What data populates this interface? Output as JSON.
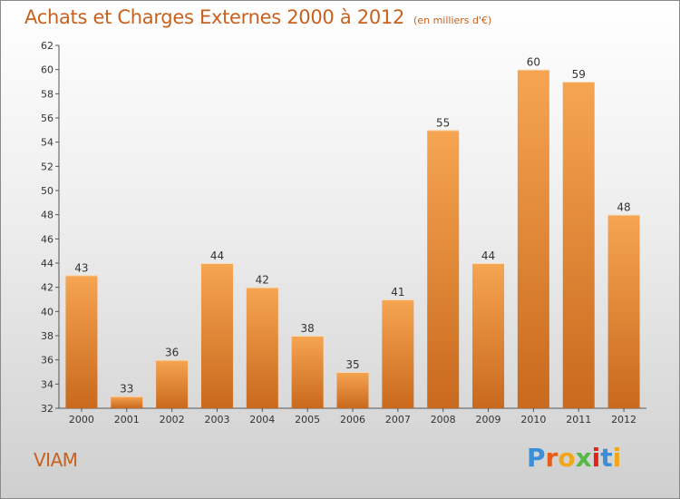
{
  "header": {
    "title": "Achats et Charges Externes 2000 à 2012",
    "subtitle": "(en milliers d'€)"
  },
  "footer": {
    "commune": "VIAM",
    "logo_letters": [
      "P",
      "r",
      "o",
      "x",
      "i",
      "t",
      "i"
    ],
    "logo_colors": [
      "#3b8fd9",
      "#e85d1a",
      "#f2a71b",
      "#57b848",
      "#e2231a",
      "#3b8fd9",
      "#f2a71b"
    ]
  },
  "chart_data": {
    "type": "bar",
    "title": "Achats et Charges Externes 2000 à 2012",
    "subtitle": "(en milliers d'€)",
    "categories": [
      "2000",
      "2001",
      "2002",
      "2003",
      "2004",
      "2005",
      "2006",
      "2007",
      "2008",
      "2009",
      "2010",
      "2011",
      "2012"
    ],
    "values": [
      43,
      33,
      36,
      44,
      42,
      38,
      35,
      41,
      55,
      44,
      60,
      59,
      48
    ],
    "ylim": [
      32,
      62
    ],
    "yticks": [
      32,
      34,
      36,
      38,
      40,
      42,
      44,
      46,
      48,
      50,
      52,
      54,
      56,
      58,
      60,
      62
    ],
    "xlabel": "",
    "ylabel": "",
    "grid": false,
    "data_labels": true,
    "bar_color": "#f0922f",
    "bar_color_dark": "#c9691d"
  }
}
